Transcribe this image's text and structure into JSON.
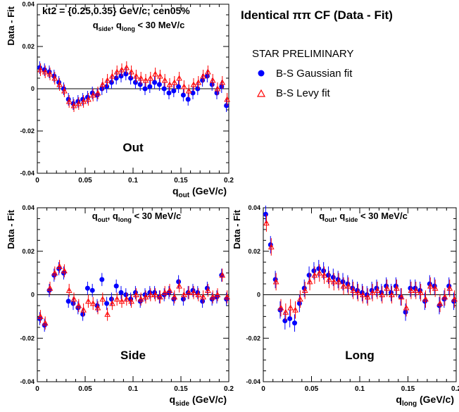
{
  "title": "Identical ππ CF (Data - Fit)",
  "preliminary": "STAR PRELIMINARY",
  "legend": {
    "gaussian": "B-S Gaussian fit",
    "levy": "B-S Levy fit"
  },
  "colors": {
    "gaussian": "#0000ff",
    "levy": "#ff0000",
    "axis": "#000000"
  },
  "chart_data": [
    {
      "type": "scatter",
      "panel": "Out",
      "label": "Out",
      "header_line1": "kt2 = {0.25,0.35} GeV/c; cen05%",
      "header_q1": "q",
      "header_q1_sub": "side",
      "header_q2": "q",
      "header_q2_sub": "long",
      "header_suffix": " < 30 MeV/c",
      "xlabel_main": "q",
      "xlabel_sub": "out",
      "xlabel_unit": " (GeV/c)",
      "ylabel": "Data - Fit",
      "xlim": [
        0,
        0.2
      ],
      "ylim": [
        -0.04,
        0.04
      ],
      "xticks": [
        "0.05",
        "0.1",
        "0.15",
        "0.2"
      ],
      "yticks": [
        "-0.04",
        "-0.02",
        "0",
        "0.02",
        "0.04"
      ],
      "series": [
        {
          "name": "B-S Gaussian fit",
          "x": [
            0.0025,
            0.0075,
            0.0125,
            0.0175,
            0.0225,
            0.0275,
            0.0325,
            0.0375,
            0.0425,
            0.0475,
            0.0525,
            0.0575,
            0.0625,
            0.0675,
            0.0725,
            0.0775,
            0.0825,
            0.0875,
            0.0925,
            0.0975,
            0.1025,
            0.1075,
            0.1125,
            0.1175,
            0.1225,
            0.1275,
            0.1325,
            0.1375,
            0.1425,
            0.1475,
            0.1525,
            0.1575,
            0.1625,
            0.1675,
            0.1725,
            0.1775,
            0.1825,
            0.1875,
            0.1925,
            0.1975
          ],
          "y": [
            0.01,
            0.009,
            0.008,
            0.006,
            0.003,
            0.0,
            -0.005,
            -0.007,
            -0.006,
            -0.005,
            -0.004,
            -0.002,
            -0.003,
            0.0,
            0.001,
            0.003,
            0.005,
            0.006,
            0.007,
            0.005,
            0.003,
            0.002,
            0.0,
            0.001,
            0.003,
            0.002,
            0.0,
            -0.002,
            -0.001,
            0.001,
            -0.003,
            -0.005,
            -0.002,
            0.0,
            0.004,
            0.006,
            0.002,
            -0.002,
            0.001,
            -0.008
          ],
          "err": [
            0.003,
            0.003,
            0.003,
            0.003,
            0.003,
            0.003,
            0.003,
            0.003,
            0.003,
            0.003,
            0.003,
            0.003,
            0.003,
            0.003,
            0.003,
            0.003,
            0.003,
            0.003,
            0.003,
            0.003,
            0.003,
            0.003,
            0.003,
            0.003,
            0.003,
            0.003,
            0.003,
            0.003,
            0.003,
            0.003,
            0.003,
            0.003,
            0.003,
            0.003,
            0.003,
            0.003,
            0.003,
            0.003,
            0.003,
            0.003
          ]
        },
        {
          "name": "B-S Levy fit",
          "x": [
            0.0025,
            0.0075,
            0.0125,
            0.0175,
            0.0225,
            0.0275,
            0.0325,
            0.0375,
            0.0425,
            0.0475,
            0.0525,
            0.0575,
            0.0625,
            0.0675,
            0.0725,
            0.0775,
            0.0825,
            0.0875,
            0.0925,
            0.0975,
            0.1025,
            0.1075,
            0.1125,
            0.1175,
            0.1225,
            0.1275,
            0.1325,
            0.1375,
            0.1425,
            0.1475,
            0.1525,
            0.1575,
            0.1625,
            0.1675,
            0.1725,
            0.1775,
            0.1825,
            0.1875,
            0.1925,
            0.1975
          ],
          "y": [
            0.009,
            0.008,
            0.007,
            0.005,
            0.002,
            -0.001,
            -0.006,
            -0.008,
            -0.007,
            -0.006,
            -0.005,
            -0.003,
            -0.002,
            0.002,
            0.004,
            0.006,
            0.008,
            0.009,
            0.01,
            0.008,
            0.006,
            0.005,
            0.004,
            0.005,
            0.007,
            0.006,
            0.004,
            0.002,
            0.003,
            0.005,
            0.001,
            -0.001,
            0.002,
            0.003,
            0.006,
            0.008,
            0.004,
            0.0,
            0.003,
            -0.005
          ],
          "err": [
            0.003,
            0.003,
            0.003,
            0.003,
            0.003,
            0.003,
            0.003,
            0.003,
            0.003,
            0.003,
            0.003,
            0.003,
            0.003,
            0.003,
            0.003,
            0.003,
            0.003,
            0.003,
            0.003,
            0.003,
            0.003,
            0.003,
            0.003,
            0.003,
            0.003,
            0.003,
            0.003,
            0.003,
            0.003,
            0.003,
            0.003,
            0.003,
            0.003,
            0.003,
            0.003,
            0.003,
            0.003,
            0.003,
            0.003,
            0.003
          ]
        }
      ]
    },
    {
      "type": "scatter",
      "panel": "Side",
      "label": "Side",
      "header_q1": "q",
      "header_q1_sub": "out",
      "header_q2": "q",
      "header_q2_sub": "long",
      "header_suffix": " < 30 MeV/c",
      "xlabel_main": "q",
      "xlabel_sub": "side",
      "xlabel_unit": " (GeV/c)",
      "ylabel": "Data - Fit",
      "xlim": [
        0,
        0.2
      ],
      "ylim": [
        -0.04,
        0.04
      ],
      "xticks": [
        "0.05",
        "0.1",
        "0.15",
        "0.2"
      ],
      "yticks": [
        "-0.04",
        "-0.02",
        "0",
        "0.02",
        "0.04"
      ],
      "series": [
        {
          "name": "B-S Gaussian fit",
          "x": [
            0.0025,
            0.0075,
            0.0125,
            0.0175,
            0.0225,
            0.0275,
            0.0325,
            0.0375,
            0.0425,
            0.0475,
            0.0525,
            0.0575,
            0.0625,
            0.0675,
            0.0725,
            0.0775,
            0.0825,
            0.0875,
            0.0925,
            0.0975,
            0.1025,
            0.1075,
            0.1125,
            0.1175,
            0.1225,
            0.1275,
            0.1325,
            0.1375,
            0.1425,
            0.1475,
            0.1525,
            0.1575,
            0.1625,
            0.1675,
            0.1725,
            0.1775,
            0.1825,
            0.1875,
            0.1925,
            0.1975
          ],
          "y": [
            -0.011,
            -0.014,
            0.002,
            0.009,
            0.012,
            0.01,
            -0.003,
            -0.004,
            -0.006,
            -0.009,
            0.003,
            0.002,
            -0.005,
            0.007,
            -0.004,
            -0.002,
            0.004,
            0.001,
            0.0,
            -0.002,
            0.001,
            -0.003,
            0.0,
            0.001,
            0.001,
            -0.001,
            0.0,
            0.001,
            -0.002,
            0.006,
            -0.002,
            0.001,
            0.002,
            0.001,
            -0.003,
            0.003,
            -0.002,
            -0.001,
            0.009,
            -0.002
          ],
          "err": [
            0.003,
            0.003,
            0.003,
            0.003,
            0.003,
            0.003,
            0.003,
            0.003,
            0.003,
            0.003,
            0.003,
            0.003,
            0.003,
            0.003,
            0.003,
            0.003,
            0.003,
            0.003,
            0.003,
            0.003,
            0.003,
            0.003,
            0.003,
            0.003,
            0.003,
            0.003,
            0.003,
            0.003,
            0.003,
            0.003,
            0.003,
            0.003,
            0.003,
            0.003,
            0.003,
            0.003,
            0.003,
            0.003,
            0.003,
            0.003
          ]
        },
        {
          "name": "B-S Levy fit",
          "x": [
            0.0025,
            0.0075,
            0.0125,
            0.0175,
            0.0225,
            0.0275,
            0.0325,
            0.0375,
            0.0425,
            0.0475,
            0.0525,
            0.0575,
            0.0625,
            0.0675,
            0.0725,
            0.0775,
            0.0825,
            0.0875,
            0.0925,
            0.0975,
            0.1025,
            0.1075,
            0.1125,
            0.1175,
            0.1225,
            0.1275,
            0.1325,
            0.1375,
            0.1425,
            0.1475,
            0.1525,
            0.1575,
            0.1625,
            0.1675,
            0.1725,
            0.1775,
            0.1825,
            0.1875,
            0.1925,
            0.1975
          ],
          "y": [
            -0.01,
            -0.013,
            0.003,
            0.01,
            0.013,
            0.011,
            0.002,
            -0.002,
            -0.005,
            -0.007,
            -0.003,
            -0.004,
            -0.006,
            -0.002,
            -0.009,
            -0.004,
            -0.002,
            -0.003,
            -0.002,
            -0.003,
            0.0,
            -0.002,
            -0.001,
            0.0,
            0.0,
            -0.001,
            0.001,
            0.002,
            -0.001,
            0.004,
            0.0,
            0.001,
            0.001,
            0.0,
            -0.001,
            0.002,
            -0.001,
            0.0,
            0.009,
            -0.001
          ],
          "err": [
            0.003,
            0.003,
            0.003,
            0.003,
            0.003,
            0.003,
            0.003,
            0.003,
            0.003,
            0.003,
            0.003,
            0.003,
            0.003,
            0.003,
            0.003,
            0.003,
            0.003,
            0.003,
            0.003,
            0.003,
            0.003,
            0.003,
            0.003,
            0.003,
            0.003,
            0.003,
            0.003,
            0.003,
            0.003,
            0.003,
            0.003,
            0.003,
            0.003,
            0.003,
            0.003,
            0.003,
            0.003,
            0.003,
            0.003,
            0.003
          ]
        }
      ]
    },
    {
      "type": "scatter",
      "panel": "Long",
      "label": "Long",
      "header_q1": "q",
      "header_q1_sub": "out",
      "header_q2": "q",
      "header_q2_sub": "side",
      "header_suffix": " < 30 MeV/c",
      "xlabel_main": "q",
      "xlabel_sub": "long",
      "xlabel_unit": " (GeV/c)",
      "ylabel": "Data - Fit",
      "xlim": [
        0,
        0.2
      ],
      "ylim": [
        -0.04,
        0.04
      ],
      "xticks": [
        "0.05",
        "0.1",
        "0.15",
        "0.2"
      ],
      "yticks": [
        "-0.04",
        "-0.02",
        "0",
        "0.02",
        "0.04"
      ],
      "series": [
        {
          "name": "B-S Gaussian fit",
          "x": [
            0.0025,
            0.0075,
            0.0125,
            0.0175,
            0.0225,
            0.0275,
            0.0325,
            0.0375,
            0.0425,
            0.0475,
            0.0525,
            0.0575,
            0.0625,
            0.0675,
            0.0725,
            0.0775,
            0.0825,
            0.0875,
            0.0925,
            0.0975,
            0.1025,
            0.1075,
            0.1125,
            0.1175,
            0.1225,
            0.1275,
            0.1325,
            0.1375,
            0.1425,
            0.1475,
            0.1525,
            0.1575,
            0.1625,
            0.1675,
            0.1725,
            0.1775,
            0.1825,
            0.1875,
            0.1925,
            0.1975
          ],
          "y": [
            0.037,
            0.023,
            0.007,
            -0.007,
            -0.012,
            -0.011,
            -0.013,
            -0.004,
            0.003,
            0.009,
            0.011,
            0.012,
            0.011,
            0.009,
            0.008,
            0.007,
            0.006,
            0.005,
            0.003,
            0.002,
            0.001,
            0.0,
            0.002,
            0.003,
            0.001,
            0.004,
            0.001,
            0.004,
            -0.001,
            -0.008,
            0.003,
            0.003,
            0.002,
            -0.003,
            0.005,
            0.004,
            -0.005,
            -0.002,
            0.004,
            -0.003
          ],
          "err": [
            0.004,
            0.004,
            0.004,
            0.004,
            0.004,
            0.004,
            0.004,
            0.004,
            0.004,
            0.004,
            0.004,
            0.004,
            0.004,
            0.004,
            0.004,
            0.004,
            0.004,
            0.004,
            0.004,
            0.004,
            0.004,
            0.004,
            0.004,
            0.004,
            0.004,
            0.004,
            0.004,
            0.004,
            0.004,
            0.004,
            0.004,
            0.004,
            0.004,
            0.004,
            0.004,
            0.004,
            0.004,
            0.004,
            0.004,
            0.004
          ]
        },
        {
          "name": "B-S Levy fit",
          "x": [
            0.0025,
            0.0075,
            0.0125,
            0.0175,
            0.0225,
            0.0275,
            0.0325,
            0.0375,
            0.0425,
            0.0475,
            0.0525,
            0.0575,
            0.0625,
            0.0675,
            0.0725,
            0.0775,
            0.0825,
            0.0875,
            0.0925,
            0.0975,
            0.1025,
            0.1075,
            0.1125,
            0.1175,
            0.1225,
            0.1275,
            0.1325,
            0.1375,
            0.1425,
            0.1475,
            0.1525,
            0.1575,
            0.1625,
            0.1675,
            0.1725,
            0.1775,
            0.1825,
            0.1875,
            0.1925,
            0.1975
          ],
          "y": [
            0.033,
            0.022,
            0.006,
            -0.006,
            -0.008,
            -0.006,
            -0.007,
            -0.002,
            0.002,
            0.006,
            0.009,
            0.01,
            0.009,
            0.007,
            0.006,
            0.006,
            0.004,
            0.004,
            0.002,
            0.001,
            0.0,
            -0.001,
            0.001,
            0.002,
            0.0,
            0.003,
            0.0,
            0.003,
            -0.001,
            -0.006,
            0.002,
            0.002,
            0.001,
            -0.002,
            0.004,
            0.003,
            -0.004,
            -0.001,
            0.003,
            -0.002
          ],
          "err": [
            0.004,
            0.004,
            0.004,
            0.004,
            0.004,
            0.004,
            0.004,
            0.004,
            0.004,
            0.004,
            0.004,
            0.004,
            0.004,
            0.004,
            0.004,
            0.004,
            0.004,
            0.004,
            0.004,
            0.004,
            0.004,
            0.004,
            0.004,
            0.004,
            0.004,
            0.004,
            0.004,
            0.004,
            0.004,
            0.004,
            0.004,
            0.004,
            0.004,
            0.004,
            0.004,
            0.004,
            0.004,
            0.004,
            0.004,
            0.004
          ]
        }
      ]
    }
  ]
}
